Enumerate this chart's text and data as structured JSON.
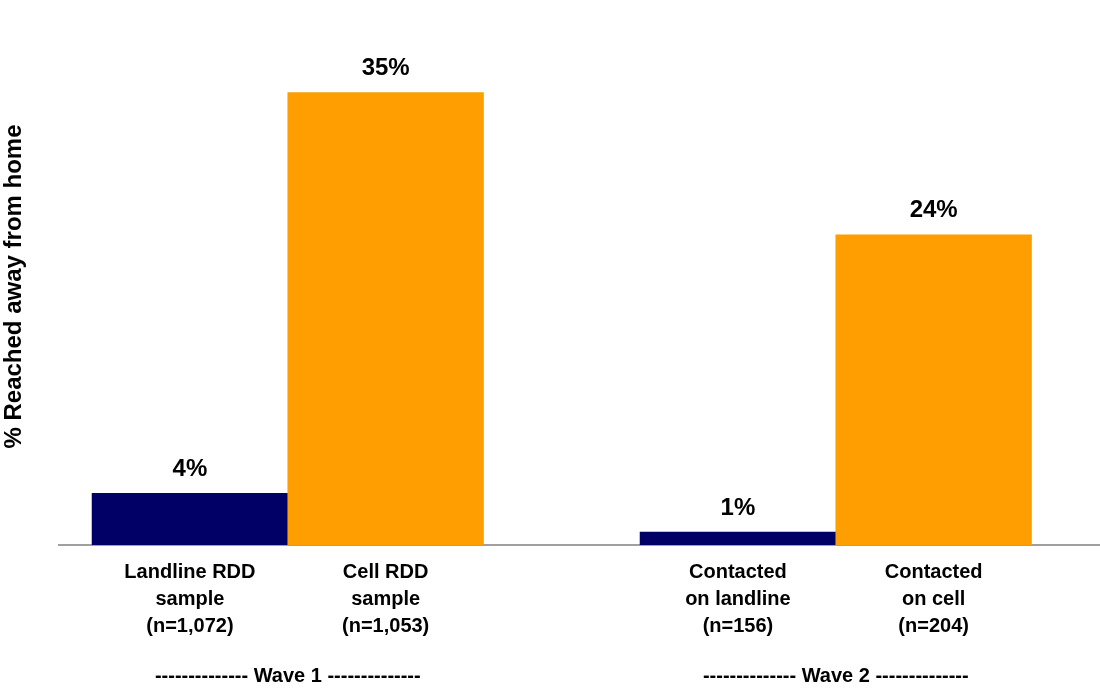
{
  "chart_data": {
    "type": "bar",
    "ylabel": "% Reached away from home",
    "categories": [
      "Landline RDD\nsample\n(n=1,072)",
      "Cell RDD\nsample\n(n=1,053)",
      "Contacted\non landline\n(n=156)",
      "Contacted\non cell\n(n=204)"
    ],
    "values": [
      4,
      35,
      1,
      24
    ],
    "colors": [
      "#000066",
      "#ff9e00",
      "#000066",
      "#ff9e00"
    ],
    "value_labels": [
      "4%",
      "35%",
      "1%",
      "24%"
    ],
    "annotations": [
      "-------------- Wave 1 --------------",
      "-------------- Wave 2 --------------"
    ],
    "grid": false,
    "legend": false
  }
}
